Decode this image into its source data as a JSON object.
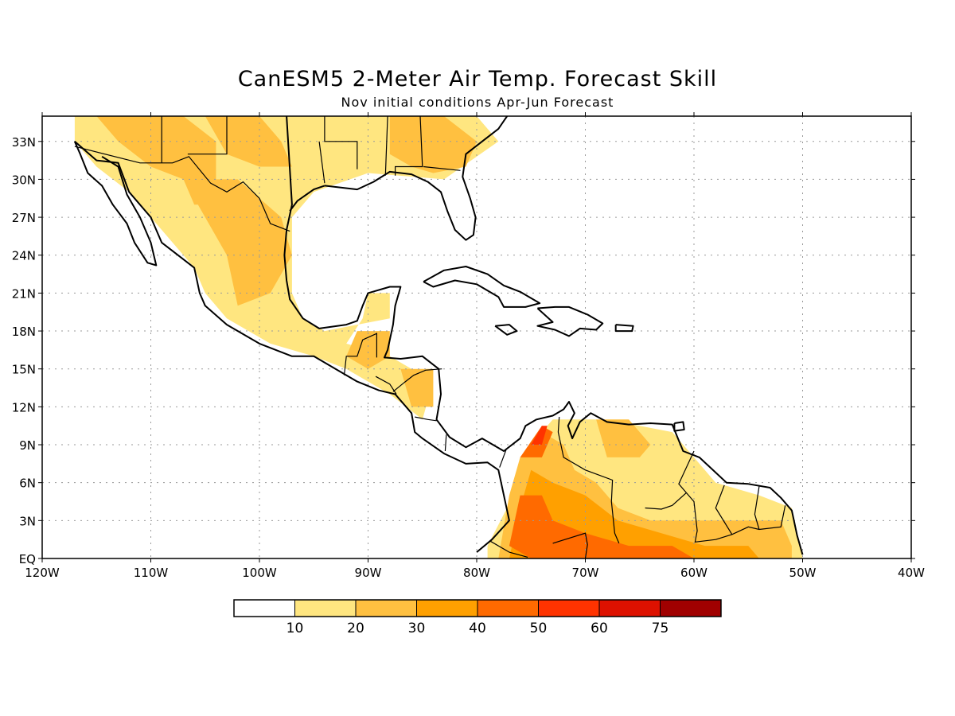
{
  "figure": {
    "title": "CanESM5 2-Meter Air Temp. Forecast Skill",
    "subtitle": "Nov initial conditions   Apr-Jun Forecast"
  },
  "map": {
    "lon_range": [
      -120,
      -40
    ],
    "lat_range": [
      0,
      35
    ],
    "lon_ticks": [
      {
        "value": -120,
        "label": "120W"
      },
      {
        "value": -110,
        "label": "110W"
      },
      {
        "value": -100,
        "label": "100W"
      },
      {
        "value": -90,
        "label": "90W"
      },
      {
        "value": -80,
        "label": "80W"
      },
      {
        "value": -70,
        "label": "70W"
      },
      {
        "value": -60,
        "label": "60W"
      },
      {
        "value": -50,
        "label": "50W"
      },
      {
        "value": -40,
        "label": "40W"
      }
    ],
    "lat_ticks": [
      {
        "value": 0,
        "label": "EQ"
      },
      {
        "value": 3,
        "label": "3N"
      },
      {
        "value": 6,
        "label": "6N"
      },
      {
        "value": 9,
        "label": "9N"
      },
      {
        "value": 12,
        "label": "12N"
      },
      {
        "value": 15,
        "label": "15N"
      },
      {
        "value": 18,
        "label": "18N"
      },
      {
        "value": 21,
        "label": "21N"
      },
      {
        "value": 24,
        "label": "24N"
      },
      {
        "value": 27,
        "label": "27N"
      },
      {
        "value": 30,
        "label": "30N"
      },
      {
        "value": 33,
        "label": "33N"
      }
    ],
    "gridlines": true,
    "skill_regions": [
      {
        "level": 1,
        "points": [
          [
            -117,
            35
          ],
          [
            -95,
            35
          ],
          [
            -80,
            35
          ],
          [
            -78,
            33
          ],
          [
            -83,
            30
          ],
          [
            -90,
            30.5
          ],
          [
            -95,
            29
          ],
          [
            -97,
            27
          ],
          [
            -97,
            24
          ],
          [
            -97,
            21
          ],
          [
            -96,
            19
          ],
          [
            -94,
            18
          ],
          [
            -91,
            18.5
          ],
          [
            -88,
            19
          ],
          [
            -88,
            21
          ],
          [
            -90,
            21
          ],
          [
            -90.5,
            19
          ],
          [
            -92,
            17
          ],
          [
            -88,
            16
          ],
          [
            -84,
            14
          ],
          [
            -85,
            11
          ],
          [
            -88,
            13
          ],
          [
            -92,
            15
          ],
          [
            -95,
            16
          ],
          [
            -99,
            17
          ],
          [
            -103,
            19
          ],
          [
            -105,
            21
          ],
          [
            -106,
            23
          ],
          [
            -109,
            26
          ],
          [
            -112,
            29
          ],
          [
            -115,
            31
          ],
          [
            -117,
            33
          ]
        ]
      },
      {
        "level": 2,
        "points": [
          [
            -119,
            35
          ],
          [
            -115,
            35
          ],
          [
            -113,
            33
          ],
          [
            -110,
            31
          ],
          [
            -107,
            30
          ],
          [
            -106,
            28
          ],
          [
            -104,
            28
          ],
          [
            -104,
            33
          ],
          [
            -107,
            35
          ]
        ]
      },
      {
        "level": 2,
        "points": [
          [
            -107,
            30
          ],
          [
            -102,
            30
          ],
          [
            -98,
            27
          ],
          [
            -97,
            24
          ],
          [
            -99,
            21
          ],
          [
            -102,
            20
          ],
          [
            -103,
            24
          ],
          [
            -105,
            27
          ]
        ]
      },
      {
        "level": 2,
        "points": [
          [
            -105,
            35
          ],
          [
            -100,
            35
          ],
          [
            -98,
            33
          ],
          [
            -97,
            31
          ],
          [
            -100,
            31
          ],
          [
            -103,
            32
          ]
        ]
      },
      {
        "level": 2,
        "points": [
          [
            -88,
            35
          ],
          [
            -83,
            35
          ],
          [
            -80,
            33
          ],
          [
            -81,
            31
          ],
          [
            -84,
            30.5
          ],
          [
            -86,
            31
          ],
          [
            -88,
            32
          ]
        ]
      },
      {
        "level": 2,
        "points": [
          [
            -91,
            18
          ],
          [
            -88,
            18
          ],
          [
            -88,
            16
          ],
          [
            -90,
            15
          ],
          [
            -92,
            16
          ]
        ]
      },
      {
        "level": 2,
        "points": [
          [
            -87,
            15
          ],
          [
            -84,
            15
          ],
          [
            -84,
            12
          ],
          [
            -86,
            12
          ]
        ]
      },
      {
        "level": 1,
        "points": [
          [
            -79,
            1
          ],
          [
            -76,
            6
          ],
          [
            -75,
            9
          ],
          [
            -73,
            11
          ],
          [
            -69,
            11
          ],
          [
            -65,
            10.5
          ],
          [
            -62,
            10
          ],
          [
            -60,
            8
          ],
          [
            -58,
            6
          ],
          [
            -54,
            5
          ],
          [
            -51,
            4
          ],
          [
            -50,
            0
          ],
          [
            -79,
            0
          ]
        ]
      },
      {
        "level": 2,
        "points": [
          [
            -78,
            0
          ],
          [
            -77,
            5
          ],
          [
            -76,
            8
          ],
          [
            -74,
            10
          ],
          [
            -72,
            9
          ],
          [
            -71,
            7
          ],
          [
            -69,
            6
          ],
          [
            -67,
            4
          ],
          [
            -64,
            3
          ],
          [
            -59,
            3
          ],
          [
            -55,
            3
          ],
          [
            -52,
            3
          ],
          [
            -51,
            1
          ],
          [
            -51,
            0
          ]
        ]
      },
      {
        "level": 2,
        "points": [
          [
            -69,
            11
          ],
          [
            -66,
            11
          ],
          [
            -64,
            9
          ],
          [
            -65,
            8
          ],
          [
            -68,
            8
          ]
        ]
      },
      {
        "level": 3,
        "points": [
          [
            -77,
            0
          ],
          [
            -76,
            4
          ],
          [
            -75,
            7
          ],
          [
            -73,
            6
          ],
          [
            -70,
            5
          ],
          [
            -67,
            3
          ],
          [
            -63,
            2
          ],
          [
            -59,
            1
          ],
          [
            -55,
            1
          ],
          [
            -54,
            0
          ]
        ]
      },
      {
        "level": 4,
        "points": [
          [
            -77,
            1
          ],
          [
            -76,
            5
          ],
          [
            -74,
            5
          ],
          [
            -73,
            3
          ],
          [
            -70,
            2
          ],
          [
            -66,
            1
          ],
          [
            -62,
            1
          ],
          [
            -60,
            0
          ],
          [
            -75,
            0
          ]
        ]
      },
      {
        "level": 4,
        "points": [
          [
            -76,
            8
          ],
          [
            -74,
            10.5
          ],
          [
            -73,
            10
          ],
          [
            -74,
            8
          ]
        ]
      },
      {
        "level": 5,
        "points": [
          [
            -75,
            9
          ],
          [
            -74,
            10.5
          ],
          [
            -73.5,
            10.5
          ],
          [
            -74,
            9
          ]
        ]
      }
    ]
  },
  "colorbar": {
    "labels": [
      "10",
      "20",
      "30",
      "40",
      "50",
      "60",
      "75"
    ],
    "colors": [
      "#ffffff",
      "#ffe680",
      "#ffc040",
      "#ffa000",
      "#ff6a00",
      "#ff3300",
      "#dd1100",
      "#a00000"
    ]
  }
}
